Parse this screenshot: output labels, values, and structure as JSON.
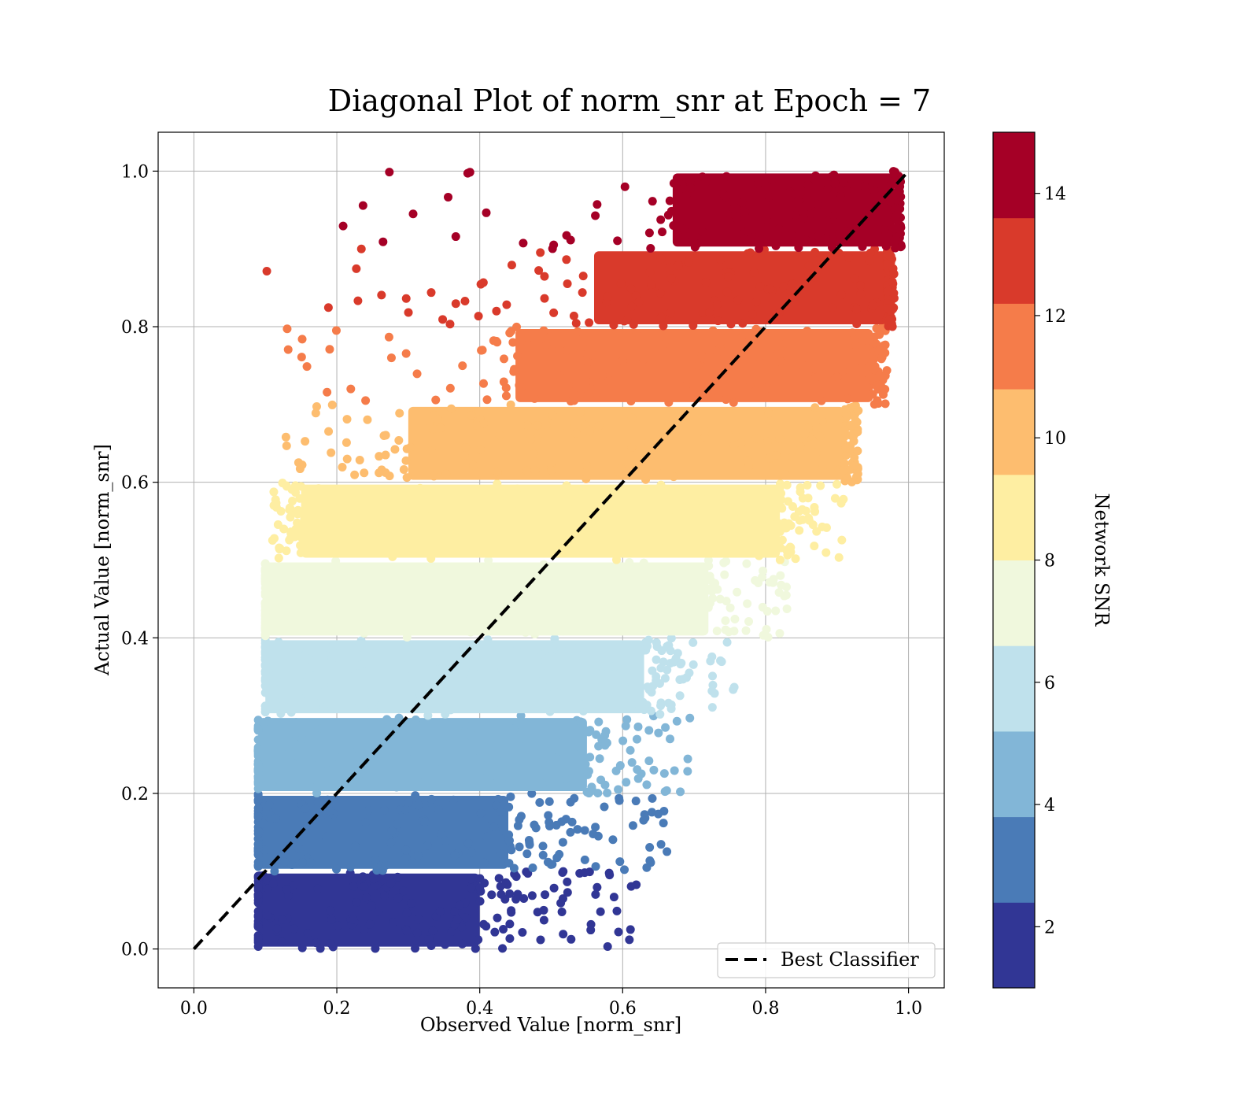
{
  "chart_data": {
    "type": "scatter",
    "title": "Diagonal Plot of norm_snr at Epoch = 7",
    "xlabel": "Observed Value [norm_snr]",
    "ylabel": "Actual Value [norm_snr]",
    "xlim": [
      -0.05,
      1.05
    ],
    "ylim": [
      -0.05,
      1.05
    ],
    "xticks": [
      0.0,
      0.2,
      0.4,
      0.6,
      0.8,
      1.0
    ],
    "xtick_labels": [
      "0.0",
      "0.2",
      "0.4",
      "0.6",
      "0.8",
      "1.0"
    ],
    "yticks": [
      0.0,
      0.2,
      0.4,
      0.6,
      0.8,
      1.0
    ],
    "ytick_labels": [
      "0.0",
      "0.2",
      "0.4",
      "0.6",
      "0.8",
      "1.0"
    ],
    "grid": true,
    "legend": {
      "placement": "lower-right",
      "entries": [
        "Best Classifier"
      ]
    },
    "reference_line": {
      "label": "Best Classifier",
      "x": [
        0.0,
        1.0
      ],
      "y": [
        0.0,
        1.0
      ],
      "style": "dashed",
      "color": "#000000"
    },
    "colorbar": {
      "label": "Network SNR",
      "range": [
        1,
        15
      ],
      "ticks": [
        2,
        4,
        6,
        8,
        10,
        12,
        14
      ],
      "tick_labels": [
        "2",
        "4",
        "6",
        "8",
        "10",
        "12",
        "14"
      ],
      "colors": [
        "#313695",
        "#4a7bb7",
        "#82b6d7",
        "#bfe1ec",
        "#f0f8dd",
        "#feeea2",
        "#fdbd6f",
        "#f57c4a",
        "#d93a2b",
        "#a50026"
      ]
    },
    "bands": [
      {
        "y_range": [
          0.0,
          0.1
        ],
        "x_core": [
          0.09,
          0.4
        ],
        "x_tail": [
          0.41,
          0.62
        ]
      },
      {
        "y_range": [
          0.1,
          0.2
        ],
        "x_core": [
          0.09,
          0.44
        ],
        "x_tail": [
          0.45,
          0.67
        ]
      },
      {
        "y_range": [
          0.2,
          0.3
        ],
        "x_core": [
          0.09,
          0.55
        ],
        "x_tail": [
          0.56,
          0.7
        ]
      },
      {
        "y_range": [
          0.3,
          0.4
        ],
        "x_core": [
          0.1,
          0.63
        ],
        "x_tail": [
          0.64,
          0.76
        ]
      },
      {
        "y_range": [
          0.4,
          0.5
        ],
        "x_core": [
          0.1,
          0.72
        ],
        "x_tail": [
          0.73,
          0.83
        ]
      },
      {
        "y_range": [
          0.5,
          0.6
        ],
        "x_core": [
          0.15,
          0.82
        ],
        "x_tail": [
          0.11,
          0.91
        ]
      },
      {
        "y_range": [
          0.6,
          0.7
        ],
        "x_core": [
          0.3,
          0.91
        ],
        "x_tail": [
          0.12,
          0.93
        ]
      },
      {
        "y_range": [
          0.7,
          0.8
        ],
        "x_core": [
          0.45,
          0.95
        ],
        "x_tail": [
          0.11,
          0.97
        ]
      },
      {
        "y_range": [
          0.8,
          0.9
        ],
        "x_core": [
          0.56,
          0.97
        ],
        "x_tail": [
          0.1,
          0.98
        ]
      },
      {
        "y_range": [
          0.9,
          1.0
        ],
        "x_core": [
          0.67,
          0.98
        ],
        "x_tail": [
          0.18,
          0.99
        ]
      }
    ]
  }
}
